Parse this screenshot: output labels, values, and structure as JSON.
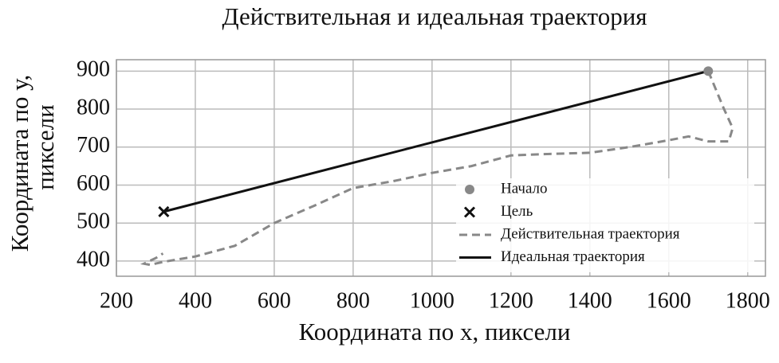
{
  "chart_data": {
    "type": "line",
    "title": "Действительная и идеальная траектория",
    "xlabel": "Координата по x, пиксели",
    "ylabel": [
      "Координата по у,",
      "пиксели"
    ],
    "xlim": [
      200,
      1845
    ],
    "ylim": [
      360,
      930
    ],
    "xticks": [
      200,
      400,
      600,
      800,
      1000,
      1200,
      1400,
      1600,
      1800
    ],
    "yticks": [
      400,
      500,
      600,
      700,
      800,
      900
    ],
    "grid": true,
    "legend": "lower right",
    "series": [
      {
        "name": "Начало",
        "type": "scatter",
        "marker": "o",
        "color": "#888888",
        "x": [
          1700
        ],
        "values": [
          900
        ]
      },
      {
        "name": "Цель",
        "type": "scatter",
        "marker": "x",
        "color": "#111111",
        "x": [
          320
        ],
        "values": [
          530
        ]
      },
      {
        "name": "Действительная траектория",
        "type": "line",
        "dash": true,
        "color": "#888888",
        "x": [
          1700,
          1740,
          1762,
          1752,
          1700,
          1650,
          1600,
          1500,
          1400,
          1300,
          1200,
          1100,
          1000,
          900,
          800,
          700,
          600,
          500,
          400,
          320,
          285,
          270,
          300,
          318
        ],
        "values": [
          900,
          800,
          750,
          715,
          715,
          728,
          718,
          700,
          685,
          682,
          678,
          650,
          632,
          610,
          592,
          545,
          500,
          440,
          412,
          398,
          390,
          393,
          408,
          420
        ]
      },
      {
        "name": "Идеальная траектория",
        "type": "line",
        "dash": false,
        "color": "#111111",
        "x": [
          320,
          1700
        ],
        "values": [
          530,
          900
        ]
      }
    ]
  }
}
